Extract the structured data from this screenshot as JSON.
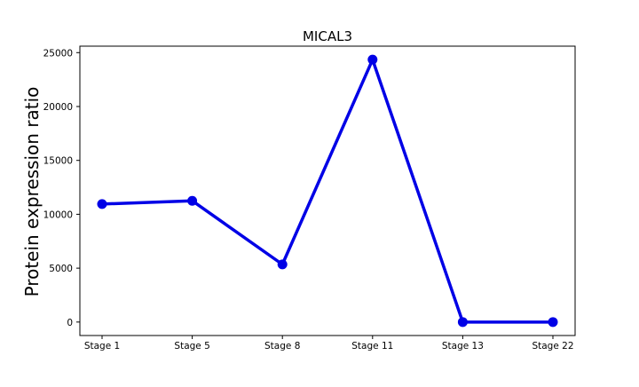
{
  "chart_data": {
    "type": "line",
    "title": "MICAL3",
    "xlabel": "",
    "ylabel": "Protein expression ratio",
    "categories": [
      "Stage 1",
      "Stage 5",
      "Stage 8",
      "Stage 11",
      "Stage 13",
      "Stage 22"
    ],
    "series": [
      {
        "color": "#0000e6",
        "values": [
          10950,
          11250,
          5350,
          24350,
          0,
          0
        ]
      }
    ],
    "ylim": [
      -1250,
      25600
    ],
    "yticks": [
      0,
      5000,
      10000,
      15000,
      20000,
      25000
    ],
    "grid": false,
    "legend": "none"
  }
}
